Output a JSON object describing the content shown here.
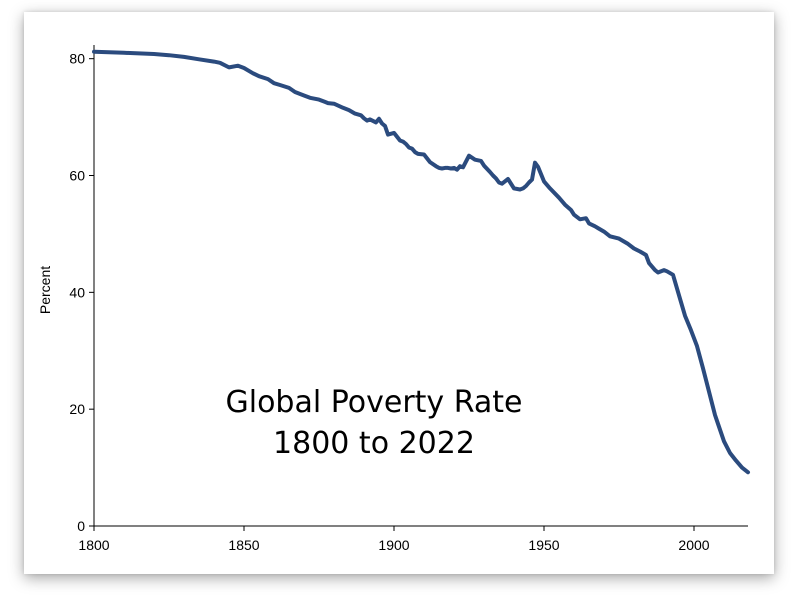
{
  "chart_data": {
    "type": "line",
    "title": "Global Poverty Rate",
    "subtitle": "1800 to 2022",
    "xlabel": "",
    "ylabel": "Percent",
    "xlim": [
      1800,
      2018
    ],
    "ylim": [
      0,
      82
    ],
    "x_ticks": [
      "1800",
      "1850",
      "1900",
      "1950",
      "2000"
    ],
    "y_ticks": [
      "0",
      "20",
      "40",
      "60",
      "80"
    ],
    "grid": false,
    "legend": "none",
    "line_color": "#2b4b7e",
    "series": [
      {
        "x": [
          1800,
          1805,
          1810,
          1815,
          1820,
          1825,
          1830,
          1835,
          1840,
          1842,
          1845,
          1848,
          1850,
          1853,
          1855,
          1858,
          1860,
          1862,
          1865,
          1867,
          1870,
          1872,
          1875,
          1877,
          1878,
          1880,
          1883,
          1885,
          1887,
          1889,
          1890,
          1891,
          1892,
          1894,
          1895,
          1896,
          1897,
          1898,
          1900,
          1902,
          1903,
          1904,
          1905,
          1906,
          1907,
          1908,
          1910,
          1912,
          1914,
          1915,
          1916,
          1917,
          1918,
          1919,
          1920,
          1921,
          1922,
          1923,
          1925,
          1927,
          1929,
          1930,
          1932,
          1933,
          1934,
          1935,
          1936,
          1938,
          1940,
          1942,
          1943,
          1944,
          1945,
          1946,
          1947,
          1948,
          1950,
          1952,
          1955,
          1957,
          1959,
          1960,
          1962,
          1964,
          1965,
          1967,
          1968,
          1970,
          1972,
          1975,
          1978,
          1980,
          1982,
          1984,
          1985,
          1987,
          1988,
          1990,
          1991,
          1993,
          1995,
          1997,
          1999,
          2001,
          2003,
          2005,
          2007,
          2008,
          2010,
          2012,
          2014,
          2016,
          2018
        ],
        "values": [
          81.2,
          81.1,
          81.0,
          80.9,
          80.8,
          80.6,
          80.3,
          79.9,
          79.5,
          79.3,
          78.5,
          78.8,
          78.4,
          77.5,
          77.0,
          76.5,
          75.8,
          75.5,
          75.0,
          74.3,
          73.7,
          73.3,
          73.0,
          72.6,
          72.4,
          72.3,
          71.6,
          71.2,
          70.6,
          70.3,
          69.8,
          69.4,
          69.6,
          69.1,
          69.7,
          68.9,
          68.5,
          67.0,
          67.3,
          66.0,
          65.8,
          65.4,
          64.8,
          64.6,
          64.0,
          63.7,
          63.6,
          62.3,
          61.6,
          61.3,
          61.2,
          61.3,
          61.3,
          61.2,
          61.3,
          61.0,
          61.6,
          61.4,
          63.4,
          62.7,
          62.5,
          61.7,
          60.6,
          60.0,
          59.5,
          58.8,
          58.6,
          59.4,
          57.8,
          57.6,
          57.8,
          58.2,
          58.8,
          59.3,
          62.2,
          61.5,
          59.0,
          57.8,
          56.2,
          55.0,
          54.1,
          53.3,
          52.5,
          52.7,
          51.8,
          51.3,
          51.0,
          50.4,
          49.6,
          49.2,
          48.3,
          47.5,
          47.0,
          46.4,
          45.0,
          43.8,
          43.4,
          43.8,
          43.6,
          43.0,
          39.5,
          36.0,
          33.5,
          30.8,
          27.0,
          23.0,
          19.0,
          17.5,
          14.5,
          12.5,
          11.2,
          10.0,
          9.2
        ]
      }
    ]
  }
}
